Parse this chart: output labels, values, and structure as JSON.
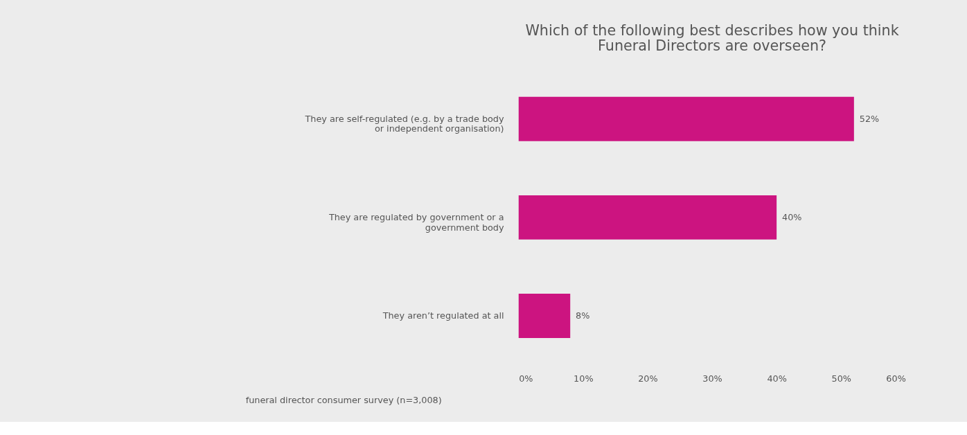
{
  "chart_data": {
    "type": "bar",
    "orientation": "horizontal",
    "title": "Which of the following best describes how you think Funeral Directors are overseen?",
    "categories": [
      "They are self-regulated (e.g. by a trade body or independent organisation)",
      "They are regulated by government or a government body",
      "They aren’t regulated at all"
    ],
    "values": [
      52,
      40,
      8
    ],
    "value_labels": [
      "52%",
      "40%",
      "8%"
    ],
    "color": "#cc1480",
    "xlim": [
      0,
      60
    ],
    "xticks": [
      {
        "value": 0,
        "label": "0%"
      },
      {
        "value": 10,
        "label": "10%"
      },
      {
        "value": 20,
        "label": "20%"
      },
      {
        "value": 30,
        "label": "30%"
      },
      {
        "value": 40,
        "label": "40%"
      },
      {
        "value": 50,
        "label": "50%"
      },
      {
        "value": 60,
        "label": "60%"
      }
    ],
    "grid": false,
    "annotations": [
      "funeral director consumer survey (n=3,008)"
    ]
  }
}
